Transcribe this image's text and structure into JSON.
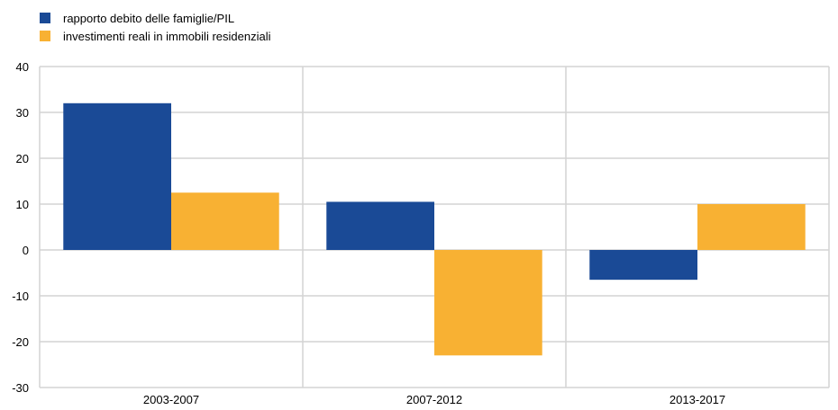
{
  "chart_data": {
    "type": "bar",
    "categories": [
      "2003-2007",
      "2007-2012",
      "2013-2017"
    ],
    "series": [
      {
        "name": "rapporto debito delle famiglie/PIL",
        "color": "#1a4a96",
        "values": [
          32,
          10.5,
          -6.5
        ]
      },
      {
        "name": "investimenti reali in immobili residenziali",
        "color": "#f8b133",
        "values": [
          12.5,
          -23,
          10
        ]
      }
    ],
    "yticks": [
      40,
      30,
      20,
      10,
      0,
      -10,
      -20,
      -30
    ],
    "ylim": [
      -30,
      40
    ],
    "grid": true,
    "legend_position": "top-left"
  }
}
